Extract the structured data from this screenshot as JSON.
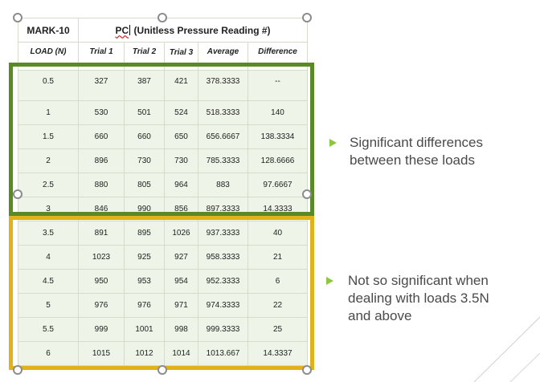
{
  "table": {
    "header_instrument": "MARK-10",
    "header_pc_prefix": "PC",
    "header_pc_rest": " (Unitless Pressure Reading #)",
    "columns": [
      "LOAD (N)",
      "Trial 1",
      "Trial 2",
      "Trial 3",
      "Average",
      "Difference"
    ],
    "rows": [
      [
        "0.5",
        "327",
        "387",
        "421",
        "378.3333",
        "--"
      ],
      [
        "1",
        "530",
        "501",
        "524",
        "518.3333",
        "140"
      ],
      [
        "1.5",
        "660",
        "660",
        "650",
        "656.6667",
        "138.3334"
      ],
      [
        "2",
        "896",
        "730",
        "730",
        "785.3333",
        "128.6666"
      ],
      [
        "2.5",
        "880",
        "805",
        "964",
        "883",
        "97.6667"
      ],
      [
        "3",
        "846",
        "990",
        "856",
        "897.3333",
        "14.3333"
      ],
      [
        "3.5",
        "891",
        "895",
        "1026",
        "937.3333",
        "40"
      ],
      [
        "4",
        "1023",
        "925",
        "927",
        "958.3333",
        "21"
      ],
      [
        "4.5",
        "950",
        "953",
        "954",
        "952.3333",
        "6"
      ],
      [
        "5",
        "976",
        "976",
        "971",
        "974.3333",
        "22"
      ],
      [
        "5.5",
        "999",
        "1001",
        "998",
        "999.3333",
        "25"
      ],
      [
        "6",
        "1015",
        "1012",
        "1014",
        "1013.667",
        "14.3337"
      ]
    ]
  },
  "bullets": [
    {
      "lines": [
        "Significant differences",
        "between these loads"
      ]
    },
    {
      "lines": [
        "Not so significant when",
        "dealing with loads 3.5N",
        "and above"
      ]
    }
  ],
  "colors": {
    "green_box": "#5a8a26",
    "yellow_box": "#e2b21a",
    "bullet": "#8dc63f",
    "cell_fill": "#eef4e7"
  }
}
